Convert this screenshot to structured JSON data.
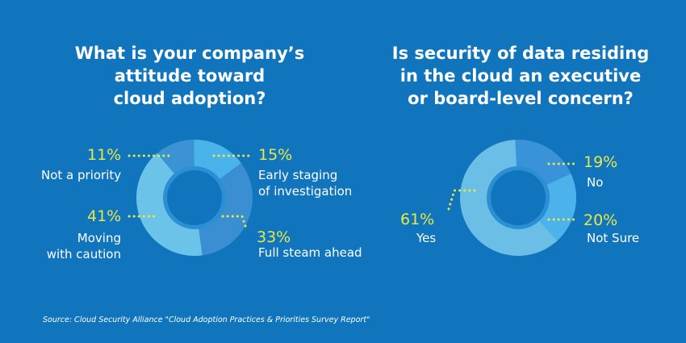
{
  "colors": {
    "background": "#1075bd",
    "accent": "#e6e84a",
    "slice_colors": [
      "#64b6e6",
      "#3e9ad8",
      "#7cc6ea",
      "#52aee6",
      "#2f8ccc"
    ]
  },
  "chart_data": [
    {
      "type": "pie",
      "donut": true,
      "title": "What is your company’s\nattitude toward\ncloud adoption?",
      "slices": [
        {
          "pct_label": "11%",
          "label": "Not a priority",
          "value": 11
        },
        {
          "pct_label": "15%",
          "label": "Early staging\nof investigation",
          "value": 15
        },
        {
          "pct_label": "33%",
          "label": "Full steam ahead",
          "value": 33
        },
        {
          "pct_label": "41%",
          "label": "Moving\nwith caution",
          "value": 41
        }
      ]
    },
    {
      "type": "pie",
      "donut": true,
      "title": "Is security of data residing\nin the cloud an executive\nor board-level concern?",
      "slices": [
        {
          "pct_label": "19%",
          "label": "No",
          "value": 19
        },
        {
          "pct_label": "20%",
          "label": "Not Sure",
          "value": 20
        },
        {
          "pct_label": "61%",
          "label": "Yes",
          "value": 61
        }
      ]
    }
  ],
  "source": "Source: Cloud Security Alliance \"Cloud Adoption Practices & Priorities Survey Report\""
}
